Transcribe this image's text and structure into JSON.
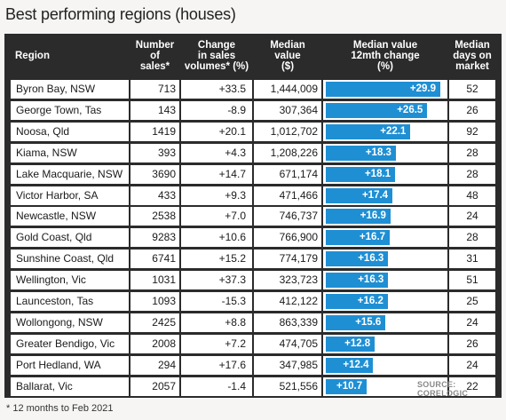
{
  "title": "Best performing regions (houses)",
  "headers": {
    "region": "Region",
    "sales": "Number\nof\nsales*",
    "change": "Change\nin sales\nvolumes* (%)",
    "median": "Median\nvalue\n($)",
    "growth": "Median value\n12mth change\n(%)",
    "days": "Median\ndays on\nmarket"
  },
  "footnote": "* 12 months to Feb 2021",
  "source": "SOURCE: CORELOGIC",
  "colors": {
    "bar": "#1f8fd4",
    "header_bg": "#2b2b2b"
  },
  "chart_data": {
    "type": "table",
    "bar_scale_max": 29.9,
    "rows": [
      {
        "region": "Byron Bay, NSW",
        "sales": "713",
        "change": "+33.5",
        "median": "1,444,009",
        "growth": 29.9,
        "growth_label": "+29.9",
        "days": "52"
      },
      {
        "region": "George Town, Tas",
        "sales": "143",
        "change": "-8.9",
        "median": "307,364",
        "growth": 26.5,
        "growth_label": "+26.5",
        "days": "26"
      },
      {
        "region": "Noosa, Qld",
        "sales": "1419",
        "change": "+20.1",
        "median": "1,012,702",
        "growth": 22.1,
        "growth_label": "+22.1",
        "days": "92"
      },
      {
        "region": "Kiama, NSW",
        "sales": "393",
        "change": "+4.3",
        "median": "1,208,226",
        "growth": 18.3,
        "growth_label": "+18.3",
        "days": "28"
      },
      {
        "region": "Lake Macquarie, NSW",
        "sales": "3690",
        "change": "+14.7",
        "median": "671,174",
        "growth": 18.1,
        "growth_label": "+18.1",
        "days": "28"
      },
      {
        "region": "Victor Harbor, SA",
        "sales": "433",
        "change": "+9.3",
        "median": "471,466",
        "growth": 17.4,
        "growth_label": "+17.4",
        "days": "48"
      },
      {
        "region": "Newcastle, NSW",
        "sales": "2538",
        "change": "+7.0",
        "median": "746,737",
        "growth": 16.9,
        "growth_label": "+16.9",
        "days": "24"
      },
      {
        "region": "Gold Coast, Qld",
        "sales": "9283",
        "change": "+10.6",
        "median": "766,900",
        "growth": 16.7,
        "growth_label": "+16.7",
        "days": "28"
      },
      {
        "region": "Sunshine Coast, Qld",
        "sales": "6741",
        "change": "+15.2",
        "median": "774,179",
        "growth": 16.3,
        "growth_label": "+16.3",
        "days": "31"
      },
      {
        "region": "Wellington, Vic",
        "sales": "1031",
        "change": "+37.3",
        "median": "323,723",
        "growth": 16.3,
        "growth_label": "+16.3",
        "days": "51"
      },
      {
        "region": "Launceston, Tas",
        "sales": "1093",
        "change": "-15.3",
        "median": "412,122",
        "growth": 16.2,
        "growth_label": "+16.2",
        "days": "25"
      },
      {
        "region": "Wollongong, NSW",
        "sales": "2425",
        "change": "+8.8",
        "median": "863,339",
        "growth": 15.6,
        "growth_label": "+15.6",
        "days": "24"
      },
      {
        "region": "Greater Bendigo, Vic",
        "sales": "2008",
        "change": "+7.2",
        "median": "474,705",
        "growth": 12.8,
        "growth_label": "+12.8",
        "days": "26"
      },
      {
        "region": "Port Hedland, WA",
        "sales": "294",
        "change": "+17.6",
        "median": "347,985",
        "growth": 12.4,
        "growth_label": "+12.4",
        "days": "24"
      },
      {
        "region": "Ballarat, Vic",
        "sales": "2057",
        "change": "-1.4",
        "median": "521,556",
        "growth": 10.7,
        "growth_label": "+10.7",
        "days": "22"
      }
    ]
  }
}
